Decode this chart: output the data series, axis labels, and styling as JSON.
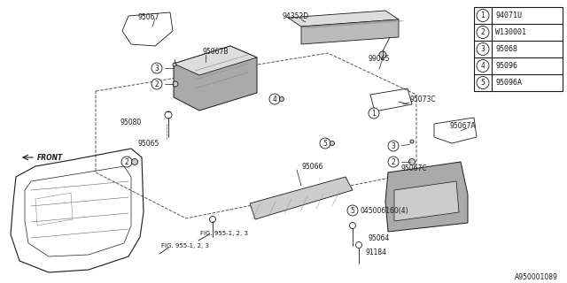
{
  "bg_color": "#ffffff",
  "line_color": "#1a1a1a",
  "legend_items": [
    {
      "circle": "1",
      "code": "94071U"
    },
    {
      "circle": "2",
      "code": "W130001"
    },
    {
      "circle": "3",
      "code": "95068"
    },
    {
      "circle": "4",
      "code": "95096"
    },
    {
      "circle": "5",
      "code": "95096A"
    }
  ],
  "footer": "A950001089"
}
